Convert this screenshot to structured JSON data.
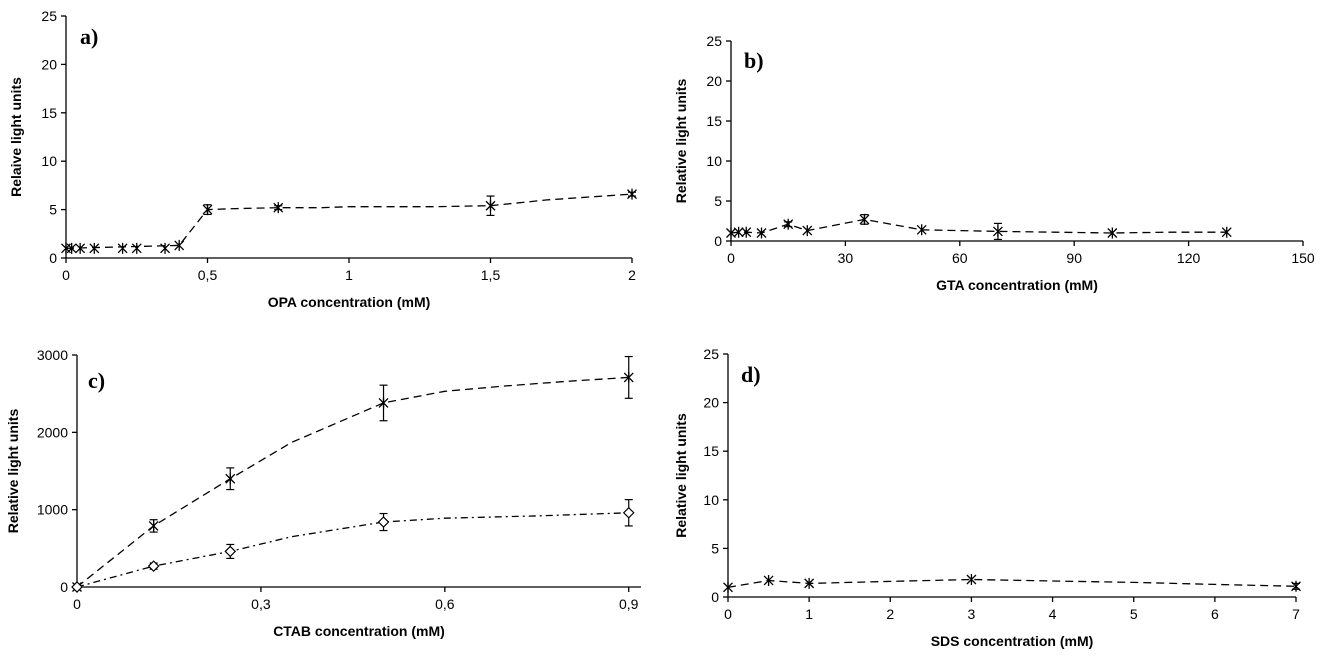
{
  "chart_data": [
    {
      "type": "line",
      "panel_label": "a)",
      "xlabel": "OPA concentration (mM)",
      "ylabel": "Relaive light units",
      "xlim": [
        0,
        2
      ],
      "ylim": [
        0,
        25
      ],
      "xticks": [
        0,
        0.5,
        1,
        1.5,
        2
      ],
      "xtick_labels": [
        "0",
        "0,5",
        "1",
        "1,5",
        "2"
      ],
      "yticks": [
        0,
        5,
        10,
        15,
        20,
        25
      ],
      "ytick_labels": [
        "0",
        "5",
        "10",
        "15",
        "20",
        "25"
      ],
      "grid": false,
      "series": [
        {
          "marker": "asterisk",
          "line_style": "dashed",
          "x": [
            0,
            0.02,
            0.05,
            0.1,
            0.2,
            0.25,
            0.35,
            0.4,
            0.5,
            0.75,
            1.5,
            2
          ],
          "y": [
            1,
            1,
            1,
            1,
            1,
            1,
            1,
            1.3,
            5,
            5.2,
            5.4,
            6.6
          ],
          "err": [
            0,
            0,
            0,
            0,
            0,
            0,
            0,
            0,
            0.5,
            0.2,
            1.0,
            0.2
          ],
          "curve_x": [
            0,
            0.4,
            0.5,
            0.6,
            0.75,
            0.9,
            1.0,
            1.3,
            1.5,
            1.7,
            2.0
          ],
          "curve_y": [
            1,
            1.3,
            5,
            5.1,
            5.2,
            5.2,
            5.3,
            5.3,
            5.4,
            6.0,
            6.6
          ]
        }
      ]
    },
    {
      "type": "line",
      "panel_label": "b)",
      "xlabel": "GTA concentration (mM)",
      "ylabel": "Relative light units",
      "xlim": [
        0,
        150
      ],
      "ylim": [
        0,
        25
      ],
      "xticks": [
        0,
        30,
        60,
        90,
        120,
        150
      ],
      "xtick_labels": [
        "0",
        "30",
        "60",
        "90",
        "120",
        "150"
      ],
      "yticks": [
        0,
        5,
        10,
        15,
        20,
        25
      ],
      "ytick_labels": [
        "0",
        "5",
        "10",
        "15",
        "20",
        "25"
      ],
      "grid": false,
      "series": [
        {
          "marker": "asterisk",
          "line_style": "dashed",
          "x": [
            0,
            2,
            4,
            8,
            15,
            20,
            35,
            50,
            70,
            100,
            130
          ],
          "y": [
            1,
            1.1,
            1.1,
            1,
            2.1,
            1.3,
            2.7,
            1.4,
            1.2,
            1,
            1.1
          ],
          "err": [
            0,
            0,
            0,
            0,
            0.3,
            0,
            0.6,
            0,
            1.0,
            0,
            0
          ],
          "curve_x": [
            0,
            2,
            4,
            8,
            15,
            20,
            35,
            50,
            60,
            70,
            85,
            100,
            115,
            130
          ],
          "curve_y": [
            1,
            1.1,
            1.1,
            1,
            2.1,
            1.3,
            2.7,
            1.4,
            1.3,
            1.2,
            1.1,
            1.0,
            1.1,
            1.1
          ]
        }
      ]
    },
    {
      "type": "line",
      "panel_label": "c)",
      "xlabel": "CTAB concentration (mM)",
      "ylabel": "Relative light units",
      "xlim": [
        0,
        0.92
      ],
      "ylim": [
        0,
        3000
      ],
      "xticks": [
        0,
        0.3,
        0.6,
        0.9
      ],
      "xtick_labels": [
        "0",
        "0,3",
        "0,6",
        "0,9"
      ],
      "yticks": [
        0,
        1000,
        2000,
        3000
      ],
      "ytick_labels": [
        "0",
        "1000",
        "2000",
        "3000"
      ],
      "grid": false,
      "series": [
        {
          "marker": "asterisk",
          "line_style": "dashed",
          "x": [
            0,
            0.125,
            0.25,
            0.5,
            0.9
          ],
          "y": [
            0,
            790,
            1400,
            2380,
            2710
          ],
          "err": [
            0,
            80,
            140,
            230,
            270
          ],
          "curve_x": [
            0,
            0.125,
            0.25,
            0.35,
            0.5,
            0.6,
            0.7,
            0.8,
            0.9
          ],
          "curve_y": [
            0,
            790,
            1400,
            1870,
            2380,
            2530,
            2600,
            2660,
            2710
          ]
        },
        {
          "marker": "diamond-open",
          "line_style": "dash-dot",
          "x": [
            0,
            0.125,
            0.25,
            0.5,
            0.9
          ],
          "y": [
            0,
            270,
            460,
            840,
            960
          ],
          "err": [
            0,
            40,
            90,
            110,
            170
          ],
          "curve_x": [
            0,
            0.125,
            0.25,
            0.35,
            0.5,
            0.6,
            0.75,
            0.9
          ],
          "curve_y": [
            0,
            270,
            460,
            650,
            840,
            890,
            920,
            960
          ]
        }
      ]
    },
    {
      "type": "line",
      "panel_label": "d)",
      "xlabel": "SDS concentration (mM)",
      "ylabel": "Relative light units",
      "xlim": [
        0,
        7
      ],
      "ylim": [
        0,
        25
      ],
      "xticks": [
        0,
        1,
        2,
        3,
        4,
        5,
        6,
        7
      ],
      "xtick_labels": [
        "0",
        "1",
        "2",
        "3",
        "4",
        "5",
        "6",
        "7"
      ],
      "yticks": [
        0,
        5,
        10,
        15,
        20,
        25
      ],
      "ytick_labels": [
        "0",
        "5",
        "10",
        "15",
        "20",
        "25"
      ],
      "grid": false,
      "series": [
        {
          "marker": "asterisk",
          "line_style": "dashed",
          "x": [
            0,
            0.5,
            1,
            3,
            7
          ],
          "y": [
            1,
            1.7,
            1.4,
            1.8,
            1.1
          ],
          "err": [
            0,
            0,
            0,
            0,
            0.3
          ],
          "curve_x": [
            0,
            0.5,
            1,
            2,
            3,
            4,
            5,
            6,
            7
          ],
          "curve_y": [
            1,
            1.7,
            1.4,
            1.6,
            1.8,
            1.65,
            1.5,
            1.3,
            1.1
          ]
        }
      ]
    }
  ]
}
